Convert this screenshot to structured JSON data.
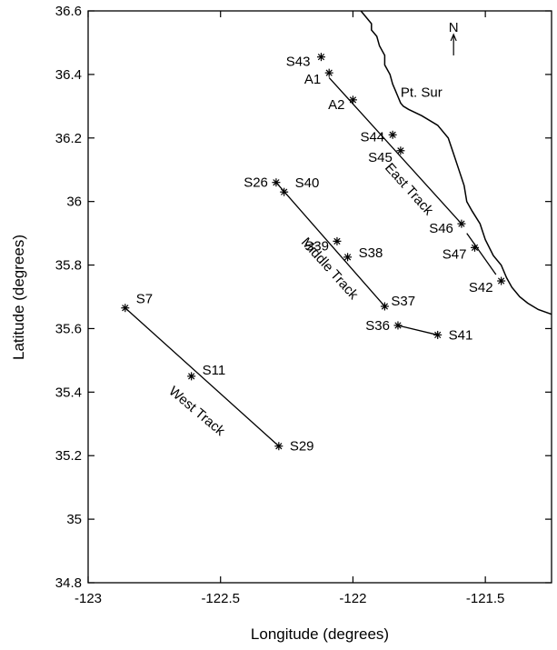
{
  "chart_data": {
    "type": "scatter",
    "xlabel": "Longitude (degrees)",
    "ylabel": "Latitude (degrees)",
    "xlim": [
      -123.0,
      -121.25
    ],
    "ylim": [
      34.8,
      36.6
    ],
    "xticks": [
      -123,
      -122.5,
      -122,
      -121.5
    ],
    "xtick_labels": [
      "-123",
      "-122.5",
      "-122",
      "-121.5"
    ],
    "yticks": [
      34.8,
      35.0,
      35.2,
      35.4,
      35.6,
      35.8,
      36.0,
      36.2,
      36.4,
      36.6
    ],
    "ytick_labels": [
      "34.8",
      "35",
      "35.2",
      "35.4",
      "35.6",
      "35.8",
      "36",
      "36.2",
      "36.4",
      "36.6"
    ],
    "stations": [
      {
        "name": "S43",
        "lon": -122.12,
        "lat": 36.455,
        "anchor": "end",
        "dx": -12,
        "dy": 10
      },
      {
        "name": "A1",
        "lon": -122.09,
        "lat": 36.405,
        "anchor": "end",
        "dx": -9,
        "dy": 12
      },
      {
        "name": "A2",
        "lon": -122.0,
        "lat": 36.32,
        "anchor": "end",
        "dx": -9,
        "dy": 10
      },
      {
        "name": "S44",
        "lon": -121.85,
        "lat": 36.21,
        "anchor": "end",
        "dx": -9,
        "dy": 7
      },
      {
        "name": "S45",
        "lon": -121.82,
        "lat": 36.16,
        "anchor": "end",
        "dx": -9,
        "dy": 12
      },
      {
        "name": "S26",
        "lon": -122.29,
        "lat": 36.06,
        "anchor": "end",
        "dx": -9,
        "dy": 5
      },
      {
        "name": "S40",
        "lon": -122.26,
        "lat": 36.03,
        "anchor": "start",
        "dx": 12,
        "dy": -5
      },
      {
        "name": "S39",
        "lon": -122.06,
        "lat": 35.875,
        "anchor": "end",
        "dx": -9,
        "dy": 10
      },
      {
        "name": "S38",
        "lon": -122.02,
        "lat": 35.825,
        "anchor": "start",
        "dx": 12,
        "dy": 0
      },
      {
        "name": "S46",
        "lon": -121.59,
        "lat": 35.93,
        "anchor": "end",
        "dx": -9,
        "dy": 10
      },
      {
        "name": "S47",
        "lon": -121.54,
        "lat": 35.855,
        "anchor": "end",
        "dx": -9,
        "dy": 12
      },
      {
        "name": "S42",
        "lon": -121.44,
        "lat": 35.75,
        "anchor": "end",
        "dx": -9,
        "dy": 12
      },
      {
        "name": "S37",
        "lon": -121.88,
        "lat": 35.67,
        "anchor": "start",
        "dx": 7,
        "dy": -1
      },
      {
        "name": "S36",
        "lon": -121.83,
        "lat": 35.61,
        "anchor": "end",
        "dx": -9,
        "dy": 5
      },
      {
        "name": "S41",
        "lon": -121.68,
        "lat": 35.58,
        "anchor": "start",
        "dx": 12,
        "dy": 5
      },
      {
        "name": "S7",
        "lon": -122.86,
        "lat": 35.665,
        "anchor": "start",
        "dx": 12,
        "dy": -5
      },
      {
        "name": "S11",
        "lon": -122.61,
        "lat": 35.45,
        "anchor": "start",
        "dx": 12,
        "dy": -2
      },
      {
        "name": "S29",
        "lon": -122.28,
        "lat": 35.23,
        "anchor": "start",
        "dx": 12,
        "dy": 5
      }
    ],
    "tracks": [
      {
        "from": [
          -122.09,
          36.39
        ],
        "to": [
          -121.59,
          35.93
        ]
      },
      {
        "from": [
          -121.57,
          35.9
        ],
        "to": [
          -121.46,
          35.77
        ]
      },
      {
        "from": [
          -122.29,
          36.06
        ],
        "to": [
          -121.88,
          35.67
        ]
      },
      {
        "from": [
          -121.83,
          35.61
        ],
        "to": [
          -121.68,
          35.58
        ]
      },
      {
        "from": [
          -122.86,
          35.665
        ],
        "to": [
          -122.28,
          35.23
        ]
      }
    ],
    "track_labels": [
      {
        "text": "East Track",
        "lon": -121.8,
        "lat": 36.03,
        "angle": 48
      },
      {
        "text": "Middle Track",
        "lon": -122.1,
        "lat": 35.78,
        "angle": 48
      },
      {
        "text": "West Track",
        "lon": -122.6,
        "lat": 35.33,
        "angle": 40
      }
    ],
    "place_labels": [
      {
        "text": "Pt. Sur",
        "lon": -121.82,
        "lat": 36.33
      }
    ],
    "north_arrow": {
      "text": "N",
      "lon": -121.62,
      "lat": 36.5
    },
    "coastline": [
      [
        -121.97,
        36.6
      ],
      [
        -121.95,
        36.58
      ],
      [
        -121.93,
        36.56
      ],
      [
        -121.93,
        36.54
      ],
      [
        -121.91,
        36.52
      ],
      [
        -121.9,
        36.49
      ],
      [
        -121.88,
        36.46
      ],
      [
        -121.88,
        36.43
      ],
      [
        -121.86,
        36.4
      ],
      [
        -121.85,
        36.37
      ],
      [
        -121.84,
        36.35
      ],
      [
        -121.83,
        36.33
      ],
      [
        -121.82,
        36.31
      ],
      [
        -121.81,
        36.3
      ],
      [
        -121.79,
        36.29
      ],
      [
        -121.74,
        36.27
      ],
      [
        -121.68,
        36.24
      ],
      [
        -121.64,
        36.2
      ],
      [
        -121.62,
        36.15
      ],
      [
        -121.6,
        36.1
      ],
      [
        -121.58,
        36.05
      ],
      [
        -121.57,
        36.0
      ],
      [
        -121.55,
        35.97
      ],
      [
        -121.52,
        35.93
      ],
      [
        -121.5,
        35.88
      ],
      [
        -121.47,
        35.83
      ],
      [
        -121.44,
        35.8
      ],
      [
        -121.42,
        35.76
      ],
      [
        -121.4,
        35.73
      ],
      [
        -121.37,
        35.7
      ],
      [
        -121.34,
        35.68
      ],
      [
        -121.3,
        35.66
      ],
      [
        -121.25,
        35.645
      ]
    ]
  }
}
